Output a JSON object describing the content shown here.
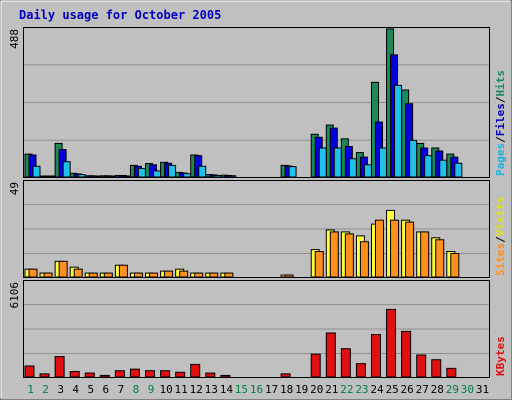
{
  "chart_data": {
    "type": "bar",
    "title": "Daily usage for October 2005",
    "categories": [
      "1",
      "2",
      "3",
      "4",
      "5",
      "6",
      "7",
      "8",
      "9",
      "10",
      "11",
      "12",
      "13",
      "14",
      "15",
      "16",
      "17",
      "18",
      "19",
      "20",
      "21",
      "22",
      "23",
      "24",
      "25",
      "26",
      "27",
      "28",
      "29",
      "30",
      "31"
    ],
    "weekend_days": [
      "1",
      "2",
      "8",
      "9",
      "15",
      "16",
      "22",
      "23",
      "29",
      "30"
    ],
    "colors": {
      "title": "#0000c0",
      "weekday_label": "#000000",
      "weekend_label": "#008040",
      "hits": "#1a8a5a",
      "files": "#0000e0",
      "pages": "#20c0e8",
      "visits": "#ffff40",
      "sites": "#ff9020",
      "kbytes": "#e01010",
      "plot_bg": "#c0c0c0",
      "grid": "#909090"
    },
    "panels": [
      {
        "id": "traffic",
        "max_label": "488",
        "ylim": [
          0,
          488
        ],
        "legend": [
          {
            "label": "Pages",
            "color": "#20b0e0"
          },
          {
            "sep": "/"
          },
          {
            "label": "Files",
            "color": "#0000c0"
          },
          {
            "sep": "/"
          },
          {
            "label": "Hits",
            "color": "#1a8a5a"
          }
        ],
        "series": [
          {
            "name": "Hits",
            "color": "#1a8a5a",
            "values": [
              75,
              3,
              110,
              12,
              4,
              4,
              5,
              38,
              44,
              48,
              15,
              72,
              8,
              6,
              0,
              0,
              0,
              38,
              0,
              140,
              170,
              125,
              80,
              310,
              485,
              285,
              110,
              95,
              75
            ]
          },
          {
            "name": "Files",
            "color": "#0000e0",
            "values": [
              72,
              3,
              90,
              10,
              4,
              4,
              5,
              35,
              40,
              45,
              13,
              70,
              7,
              5,
              0,
              0,
              0,
              36,
              0,
              130,
              160,
              100,
              65,
              180,
              400,
              240,
              95,
              85,
              65
            ]
          },
          {
            "name": "Pages",
            "color": "#20c0e8",
            "values": [
              35,
              2,
              50,
              8,
              3,
              3,
              3,
              28,
              20,
              38,
              11,
              35,
              5,
              4,
              0,
              0,
              0,
              34,
              0,
              95,
              95,
              60,
              40,
              95,
              300,
              120,
              70,
              55,
              45
            ]
          }
        ]
      },
      {
        "id": "visits",
        "max_label": "49",
        "ylim": [
          0,
          49
        ],
        "legend": [
          {
            "label": "Sites",
            "color": "#ff9020"
          },
          {
            "sep": "/"
          },
          {
            "label": "Visits",
            "color": "#e0e020"
          }
        ],
        "series": [
          {
            "name": "Visits",
            "color": "#ffff40",
            "values": [
              4,
              2,
              8,
              5,
              2,
              2,
              6,
              2,
              2,
              3,
              4,
              2,
              2,
              2,
              0,
              0,
              0,
              1,
              0,
              14,
              24,
              23,
              21,
              27,
              34,
              29,
              23,
              20,
              13
            ]
          },
          {
            "name": "Sites",
            "color": "#ff9020",
            "values": [
              4,
              2,
              8,
              4,
              2,
              2,
              6,
              2,
              2,
              3,
              3,
              2,
              2,
              2,
              0,
              0,
              0,
              1,
              0,
              13,
              23,
              22,
              18,
              29,
              29,
              28,
              23,
              19,
              12
            ]
          }
        ]
      },
      {
        "id": "kbytes",
        "max_label": "6106",
        "ylim": [
          0,
          6106
        ],
        "legend": [
          {
            "label": "KBytes",
            "color": "#e01010"
          }
        ],
        "series": [
          {
            "name": "KBytes",
            "color": "#e01010",
            "values": [
              700,
              200,
              1300,
              350,
              250,
              100,
              400,
              500,
              400,
              400,
              300,
              800,
              250,
              100,
              0,
              0,
              0,
              200,
              0,
              1450,
              2800,
              1800,
              850,
              2700,
              4300,
              2900,
              1400,
              1100,
              550
            ]
          }
        ]
      }
    ]
  }
}
